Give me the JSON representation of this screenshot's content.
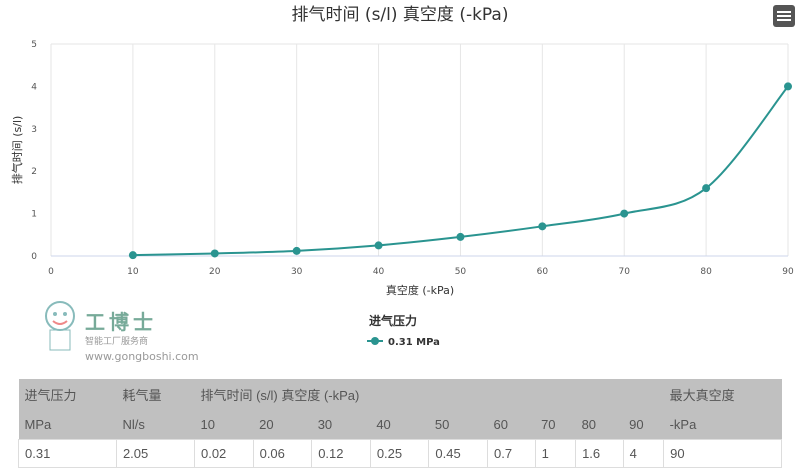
{
  "chart_data": {
    "type": "line",
    "title": "排气时间 (s/l) 真空度 (-kPa)",
    "xlabel": "真空度 (-kPa)",
    "ylabel": "排气时间 (s/l)",
    "xlim": [
      0,
      90
    ],
    "ylim": [
      0,
      5
    ],
    "x_ticks": [
      "0",
      "10",
      "20",
      "30",
      "40",
      "50",
      "60",
      "70",
      "80",
      "90"
    ],
    "y_ticks": [
      "0",
      "1",
      "2",
      "3",
      "4",
      "5"
    ],
    "grid": "vertical",
    "legend_title": "进气压力",
    "legend_position": "bottom",
    "series": [
      {
        "name": "0.31 MPa",
        "color": "#2a9490",
        "x": [
          10,
          20,
          30,
          40,
          50,
          60,
          70,
          80,
          90
        ],
        "values": [
          0.02,
          0.06,
          0.12,
          0.25,
          0.45,
          0.7,
          1,
          1.6,
          4
        ]
      }
    ]
  },
  "menu_icon": "hamburger-menu-icon",
  "table": {
    "header_row1": [
      "进气压力",
      "耗气量",
      "排气时间 (s/l) 真空度 (-kPa)",
      "最大真空度"
    ],
    "header_row2": [
      "MPa",
      "Nl/s",
      "10",
      "20",
      "30",
      "40",
      "50",
      "60",
      "70",
      "80",
      "90",
      "-kPa"
    ],
    "rows": [
      [
        "0.31",
        "2.05",
        "0.02",
        "0.06",
        "0.12",
        "0.25",
        "0.45",
        "0.7",
        "1",
        "1.6",
        "4",
        "90"
      ]
    ]
  },
  "watermark": {
    "brand": "工博士",
    "tagline": "智能工厂服务商",
    "url": "www.gongboshi.com"
  }
}
